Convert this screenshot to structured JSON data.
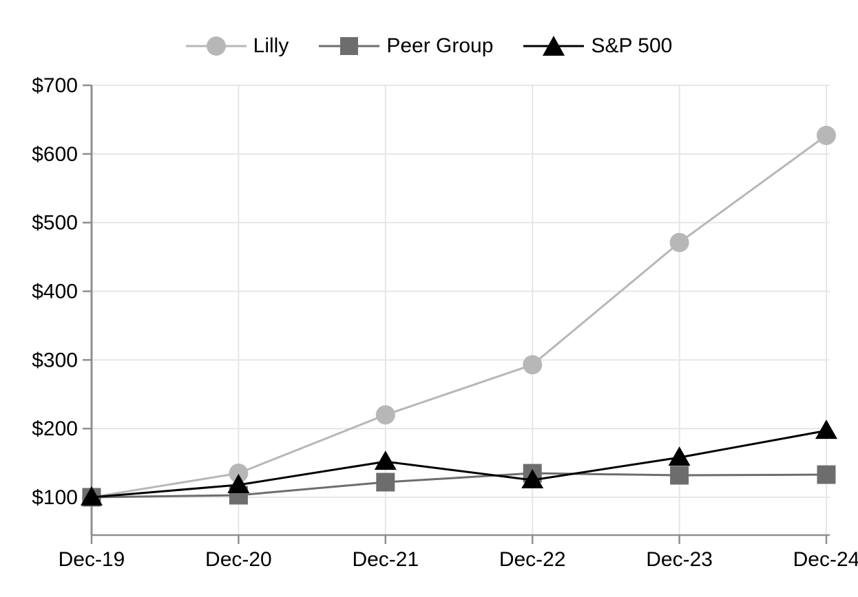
{
  "chart_data": {
    "type": "line",
    "title": "",
    "x": [
      "Dec-19",
      "Dec-20",
      "Dec-21",
      "Dec-22",
      "Dec-23",
      "Dec-24"
    ],
    "series": [
      {
        "name": "Lilly",
        "marker": "circle",
        "color": "#b7b7b7",
        "values": [
          100,
          135,
          220,
          293,
          471,
          627
        ]
      },
      {
        "name": "Peer Group",
        "marker": "square",
        "color": "#6d6d6d",
        "values": [
          100,
          103,
          122,
          135,
          132,
          133
        ]
      },
      {
        "name": "S&P 500",
        "marker": "triangle",
        "color": "#000000",
        "values": [
          100,
          118,
          152,
          125,
          158,
          197
        ]
      }
    ],
    "y_axis": {
      "tick_prefix": "$",
      "ticks": [
        700,
        600,
        500,
        400,
        300,
        200,
        100
      ],
      "min": 45,
      "max": 700
    },
    "grid": {
      "horizontal": true,
      "vertical": true
    },
    "legend_position": "top",
    "colors": {
      "background": "#ffffff",
      "gridline": "#e6e6e6",
      "axis": "#8f8f8f",
      "tick_label": "#000000"
    }
  }
}
